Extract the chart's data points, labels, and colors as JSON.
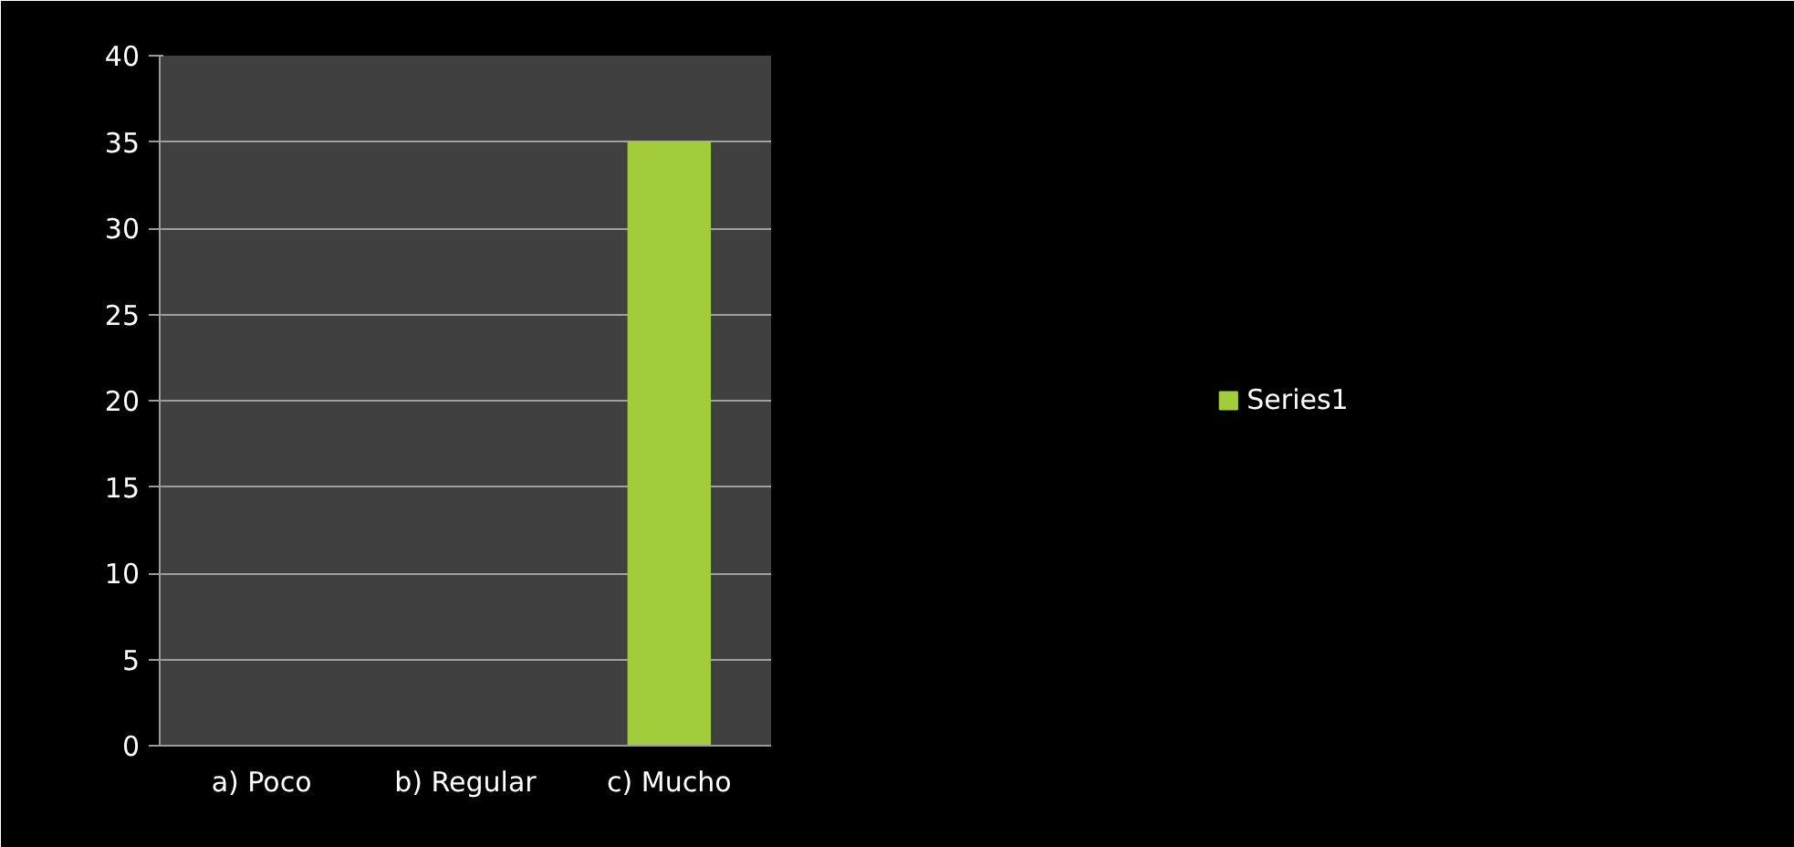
{
  "chart_data": {
    "type": "bar",
    "categories": [
      "a) Poco",
      "b) Regular",
      "c) Mucho"
    ],
    "series": [
      {
        "name": "Series1",
        "color": "#a3cc3c",
        "values": [
          0,
          0,
          35
        ]
      }
    ],
    "ylim": [
      0,
      40
    ],
    "yticks": [
      0,
      5,
      10,
      15,
      20,
      25,
      30,
      35,
      40
    ],
    "grid": "y",
    "legend": "right"
  }
}
